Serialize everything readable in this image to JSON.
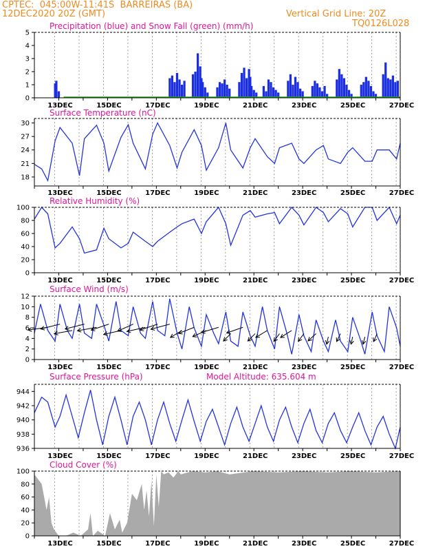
{
  "header": {
    "line1_left": "CPTEC:  045:00W-11:41S  BARREIRAS (BA)",
    "line2_left": "12DEC2020 20Z (GMT)",
    "line2_right": "Vertical Grid Line: 20Z",
    "line3_right": "TQ0126L028"
  },
  "colors": {
    "header": "#f08a1e",
    "title": "#e0159a",
    "line": "#2233dd",
    "precip": "#1c2fe0",
    "snow": "#22aa22",
    "cloud": "#aaaaaa",
    "arrow": "#000000"
  },
  "chart_data": [
    {
      "id": "precip",
      "type": "bar",
      "title": "Precipitation (blue) and Snow Fall (green) (mm/h)",
      "ylim": [
        0,
        5
      ],
      "yticks": [
        0,
        1,
        2,
        3,
        4,
        5
      ],
      "x_tick_labels": [
        "13DEC",
        "15DEC",
        "17DEC",
        "19DEC",
        "21DEC",
        "23DEC",
        "25DEC",
        "27DEC"
      ],
      "series": [
        {
          "name": "Precipitation",
          "color": "#1c2fe0",
          "x": [
            12.85,
            12.9,
            13.0,
            17.55,
            17.65,
            17.75,
            17.85,
            17.95,
            18.05,
            18.15,
            18.5,
            18.6,
            18.7,
            18.8,
            18.85,
            18.9,
            19.0,
            19.1,
            19.5,
            19.6,
            19.7,
            19.8,
            19.9,
            20.0,
            20.4,
            20.5,
            20.6,
            20.7,
            20.8,
            20.85,
            20.9,
            21.0,
            21.1,
            21.4,
            21.5,
            21.6,
            21.7,
            21.8,
            21.9,
            22.0,
            22.4,
            22.5,
            22.6,
            22.7,
            22.8,
            22.9,
            23.0,
            23.4,
            23.5,
            23.6,
            23.7,
            23.8,
            23.9,
            24.0,
            24.4,
            24.5,
            24.6,
            24.7,
            24.8,
            24.9,
            25.0,
            25.4,
            25.5,
            25.6,
            25.7,
            25.8,
            25.9,
            26.0,
            26.3,
            26.4,
            26.5,
            26.6,
            26.7,
            26.8,
            26.9
          ],
          "values": [
            1.1,
            1.3,
            0.5,
            1.5,
            1.7,
            1.2,
            1.9,
            1.4,
            1.0,
            1.3,
            1.8,
            2.0,
            3.4,
            2.4,
            1.5,
            1.2,
            0.8,
            0.4,
            0.8,
            1.2,
            1.1,
            1.4,
            1.0,
            0.7,
            1.2,
            1.9,
            2.3,
            1.5,
            2.2,
            1.6,
            0.9,
            0.6,
            0.4,
            0.9,
            0.5,
            1.4,
            1.2,
            0.8,
            0.6,
            0.4,
            1.3,
            1.8,
            1.0,
            1.6,
            1.2,
            0.7,
            0.5,
            0.9,
            1.3,
            1.1,
            0.8,
            0.5,
            0.9,
            0.3,
            1.4,
            2.2,
            1.8,
            1.5,
            1.0,
            0.6,
            0.3,
            1.0,
            1.2,
            1.6,
            1.3,
            0.9,
            0.5,
            0.3,
            1.8,
            2.7,
            1.5,
            1.4,
            1.7,
            1.2,
            1.3
          ]
        },
        {
          "name": "Snow Fall",
          "color": "#22aa22",
          "x": [],
          "values": []
        }
      ]
    },
    {
      "id": "temp",
      "type": "line",
      "title": "Surface Temperature (nC)",
      "ylim": [
        16,
        31
      ],
      "yticks": [
        18,
        21,
        24,
        27,
        30
      ],
      "x_tick_labels": [
        "13DEC",
        "15DEC",
        "17DEC",
        "19DEC",
        "21DEC",
        "23DEC",
        "25DEC",
        "27DEC"
      ],
      "series": [
        {
          "name": "Surface Temperature",
          "color": "#2233dd",
          "x": [
            12.0,
            12.3,
            12.55,
            12.85,
            13.05,
            13.55,
            13.85,
            14.05,
            14.55,
            14.85,
            15.05,
            15.55,
            15.85,
            16.05,
            16.55,
            16.85,
            17.05,
            17.55,
            17.85,
            18.05,
            18.55,
            18.85,
            19.05,
            19.55,
            19.85,
            20.05,
            20.55,
            20.85,
            21.05,
            21.55,
            21.85,
            22.05,
            22.55,
            22.85,
            23.05,
            23.55,
            23.85,
            24.05,
            24.55,
            24.85,
            25.05,
            25.55,
            25.85,
            26.05,
            26.55,
            26.85,
            27.0
          ],
          "values": [
            20.8,
            19.8,
            17.2,
            26.0,
            29.0,
            25.5,
            18.3,
            26.5,
            29.5,
            25.5,
            19.3,
            26.8,
            29.6,
            25.5,
            19.8,
            27.5,
            30.0,
            25.0,
            20.0,
            23.5,
            28.5,
            25.0,
            19.5,
            24.5,
            30.0,
            24.0,
            20.0,
            24.5,
            26.5,
            22.5,
            21.0,
            24.5,
            25.5,
            22.0,
            21.0,
            24.0,
            25.0,
            22.0,
            21.0,
            23.5,
            24.5,
            21.5,
            21.5,
            24.0,
            24.0,
            22.0,
            25.5
          ]
        }
      ]
    },
    {
      "id": "rh",
      "type": "line",
      "title": "Relative Humidity (%)",
      "ylim": [
        0,
        100
      ],
      "yticks": [
        0,
        20,
        40,
        60,
        80,
        100
      ],
      "x_tick_labels": [
        "13DEC",
        "15DEC",
        "17DEC",
        "19DEC",
        "21DEC",
        "23DEC",
        "25DEC",
        "27DEC"
      ],
      "series": [
        {
          "name": "Relative Humidity",
          "color": "#2233dd",
          "x": [
            12.0,
            12.3,
            12.55,
            12.85,
            13.05,
            13.55,
            13.85,
            14.05,
            14.55,
            14.85,
            15.05,
            15.55,
            15.85,
            16.05,
            16.55,
            16.85,
            17.05,
            17.55,
            17.85,
            18.05,
            18.55,
            18.85,
            19.05,
            19.55,
            19.85,
            20.05,
            20.55,
            20.85,
            21.05,
            21.55,
            21.85,
            22.05,
            22.55,
            22.85,
            23.05,
            23.55,
            23.85,
            24.05,
            24.55,
            24.85,
            25.05,
            25.55,
            25.85,
            26.05,
            26.55,
            26.85,
            27.0
          ],
          "values": [
            82,
            100,
            90,
            38,
            45,
            70,
            52,
            30,
            35,
            68,
            52,
            38,
            45,
            62,
            48,
            40,
            48,
            62,
            70,
            75,
            82,
            60,
            78,
            100,
            75,
            42,
            88,
            95,
            85,
            90,
            92,
            75,
            100,
            88,
            73,
            100,
            92,
            78,
            98,
            90,
            70,
            100,
            100,
            80,
            100,
            75,
            88
          ]
        }
      ]
    },
    {
      "id": "wind",
      "type": "line",
      "title": "Surface Wind (m/s)",
      "ylim": [
        0,
        12
      ],
      "yticks": [
        0,
        2,
        4,
        6,
        8,
        10,
        12
      ],
      "x_tick_labels": [
        "13DEC",
        "15DEC",
        "17DEC",
        "19DEC",
        "21DEC",
        "23DEC",
        "25DEC",
        "27DEC"
      ],
      "series": [
        {
          "name": "Surface Wind",
          "color": "#2233dd",
          "x": [
            12.0,
            12.25,
            12.55,
            12.85,
            13.05,
            13.35,
            13.55,
            13.85,
            14.05,
            14.35,
            14.55,
            14.85,
            15.05,
            15.35,
            15.55,
            15.85,
            16.05,
            16.35,
            16.55,
            16.85,
            17.05,
            17.35,
            17.55,
            17.85,
            18.05,
            18.35,
            18.55,
            18.85,
            19.05,
            19.35,
            19.55,
            19.85,
            20.05,
            20.35,
            20.55,
            20.85,
            21.05,
            21.35,
            21.55,
            21.85,
            22.05,
            22.35,
            22.55,
            22.85,
            23.05,
            23.35,
            23.55,
            23.85,
            24.05,
            24.35,
            24.55,
            24.85,
            25.05,
            25.35,
            25.55,
            25.85,
            26.05,
            26.35,
            26.55,
            26.85,
            27.0
          ],
          "values": [
            5.0,
            10.5,
            5.5,
            3.5,
            10.5,
            5.5,
            4.0,
            10.5,
            5.0,
            4.0,
            10.5,
            6.5,
            3.5,
            11.0,
            5.5,
            4.5,
            10.0,
            5.0,
            4.0,
            11.0,
            5.5,
            4.5,
            11.5,
            5.0,
            2.0,
            10.0,
            6.0,
            2.5,
            8.5,
            5.0,
            3.0,
            9.0,
            3.5,
            2.5,
            9.0,
            4.5,
            2.5,
            10.0,
            5.5,
            2.0,
            10.0,
            5.0,
            1.0,
            8.5,
            4.5,
            1.5,
            7.5,
            3.5,
            1.5,
            7.5,
            3.5,
            1.5,
            8.0,
            4.0,
            1.0,
            9.0,
            4.5,
            1.5,
            10.0,
            6.0,
            2.5
          ]
        }
      ]
    },
    {
      "id": "pres",
      "type": "line",
      "title": "Surface Pressure (hPa)",
      "annotation": "Model Altitude: 635.604 m",
      "ylim": [
        936,
        945
      ],
      "yticks": [
        936,
        938,
        940,
        942,
        944
      ],
      "x_tick_labels": [
        "13DEC",
        "15DEC",
        "17DEC",
        "19DEC",
        "21DEC",
        "23DEC",
        "25DEC",
        "27DEC"
      ],
      "series": [
        {
          "name": "Surface Pressure",
          "color": "#2233dd",
          "x": [
            12.0,
            12.3,
            12.55,
            12.85,
            13.05,
            13.3,
            13.55,
            13.8,
            14.05,
            14.3,
            14.55,
            14.8,
            15.05,
            15.3,
            15.55,
            15.8,
            16.05,
            16.3,
            16.55,
            16.8,
            17.05,
            17.3,
            17.55,
            17.8,
            18.05,
            18.3,
            18.55,
            18.8,
            19.05,
            19.3,
            19.55,
            19.8,
            20.05,
            20.3,
            20.55,
            20.8,
            21.05,
            21.3,
            21.55,
            21.8,
            22.05,
            22.3,
            22.55,
            22.8,
            23.05,
            23.3,
            23.55,
            23.8,
            24.05,
            24.3,
            24.55,
            24.8,
            25.05,
            25.3,
            25.55,
            25.8,
            26.05,
            26.3,
            26.55,
            26.8,
            27.0
          ],
          "values": [
            941.0,
            943.2,
            942.5,
            939.0,
            940.5,
            943.5,
            940.5,
            937.5,
            941.0,
            944.2,
            940.0,
            936.5,
            940.5,
            943.2,
            940.0,
            936.5,
            940.5,
            942.5,
            940.0,
            936.5,
            940.0,
            942.5,
            939.5,
            937.0,
            940.0,
            942.8,
            939.8,
            937.0,
            939.8,
            941.5,
            939.0,
            936.5,
            939.5,
            941.8,
            939.0,
            937.0,
            939.5,
            942.0,
            939.0,
            937.0,
            940.0,
            941.8,
            939.0,
            936.8,
            939.5,
            941.5,
            938.5,
            936.8,
            939.5,
            941.0,
            938.5,
            936.8,
            939.0,
            941.0,
            938.5,
            936.5,
            939.0,
            940.5,
            938.0,
            936.0,
            939.0
          ]
        }
      ]
    },
    {
      "id": "cloud",
      "type": "area",
      "title": "Cloud Cover (%)",
      "ylim": [
        0,
        100
      ],
      "yticks": [
        0,
        20,
        40,
        60,
        80,
        100
      ],
      "x_tick_labels": [
        "13DEC",
        "15DEC",
        "17DEC",
        "19DEC",
        "21DEC",
        "23DEC",
        "25DEC",
        "27DEC"
      ],
      "series": [
        {
          "name": "Cloud Cover",
          "color": "#aaaaaa",
          "x": [
            12.0,
            12.2,
            12.3,
            12.5,
            12.6,
            12.7,
            12.8,
            13.0,
            13.3,
            13.6,
            13.9,
            14.2,
            14.3,
            14.4,
            14.6,
            14.9,
            15.1,
            15.3,
            15.5,
            15.6,
            15.8,
            16.0,
            16.2,
            16.4,
            16.5,
            16.6,
            16.7,
            16.8,
            16.9,
            17.0,
            17.1,
            17.2,
            17.3,
            17.5,
            17.7,
            17.9,
            18.0,
            18.5,
            19.0,
            19.5,
            20.0,
            21.0,
            22.0,
            23.0,
            24.0,
            25.0,
            26.0,
            27.0
          ],
          "values": [
            95,
            85,
            80,
            40,
            60,
            20,
            10,
            0,
            0,
            5,
            0,
            10,
            35,
            0,
            8,
            0,
            35,
            10,
            25,
            5,
            20,
            65,
            55,
            80,
            40,
            70,
            30,
            85,
            15,
            95,
            45,
            100,
            95,
            98,
            90,
            100,
            95,
            100,
            98,
            100,
            95,
            100,
            98,
            100,
            98,
            100,
            98,
            100
          ]
        }
      ]
    }
  ],
  "wind_arrows": {
    "times": [
      12.55,
      13.05,
      13.55,
      14.05,
      14.55,
      15.05,
      15.55,
      16.05,
      16.55,
      17.05,
      17.55,
      18.05,
      18.55,
      19.05,
      19.55,
      20.05,
      20.55,
      21.05,
      21.55,
      22.05,
      22.55,
      23.05,
      23.55,
      24.05,
      24.55,
      25.05,
      25.55,
      26.05
    ],
    "u": [
      1.0,
      0.9,
      1.0,
      0.9,
      1.0,
      0.8,
      1.0,
      0.7,
      1.0,
      0.8,
      1.0,
      0.6,
      0.8,
      0.7,
      0.9,
      0.4,
      0.9,
      0.4,
      0.6,
      0.3,
      0.5,
      0.3,
      0.4,
      0.1,
      0.2,
      0.1,
      0.1,
      0.2
    ],
    "v": [
      0.3,
      0.5,
      0.4,
      0.5,
      0.4,
      0.6,
      0.5,
      0.7,
      0.5,
      0.6,
      0.6,
      0.8,
      0.7,
      0.7,
      0.6,
      0.9,
      0.7,
      0.9,
      0.8,
      0.9,
      0.7,
      0.9,
      0.8,
      1.0,
      0.9,
      1.0,
      0.9,
      1.0
    ],
    "speed": [
      6,
      7,
      5,
      7,
      6,
      7,
      5,
      7,
      6,
      7,
      7,
      5,
      6,
      5,
      6,
      4,
      6,
      4,
      5,
      4,
      5,
      4,
      4,
      3,
      4,
      3,
      3,
      4
    ]
  }
}
